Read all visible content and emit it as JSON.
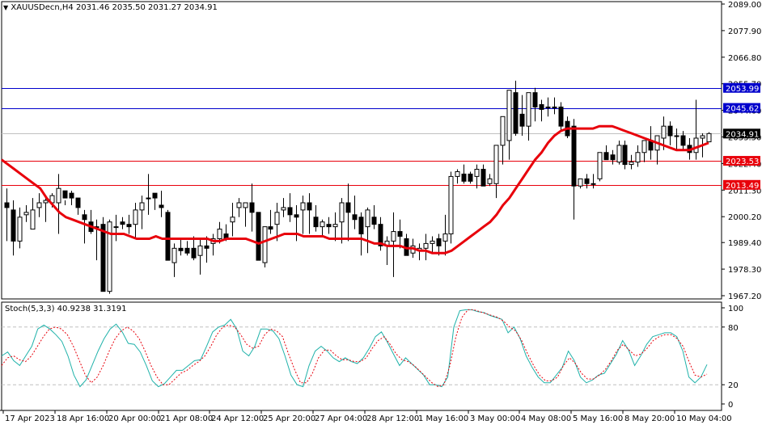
{
  "header": {
    "symbol_timeframe": "XAUUSDecn,H4",
    "ohlc": "2031.46 2035.50 2031.27 2034.91",
    "title": "XAUUSDecn,H4  2031.46 2035.50 2031.27 2034.91"
  },
  "stoch_panel": {
    "title": "Stoch(5,3,3) 40.9238 31.3191",
    "levels": [
      100,
      80,
      20,
      0
    ],
    "level_labels": [
      "100",
      "80",
      "20",
      "0"
    ]
  },
  "colors": {
    "background": "#ffffff",
    "candle_bull": "#ffffff",
    "candle_bear": "#000000",
    "ma_line": "#e8000b",
    "support_line": "#e8000b",
    "resistance_line": "#0000cc",
    "current_price_line": "#c0c0c0",
    "stoch_main": "#20b2aa",
    "stoch_signal": "#e8000b",
    "level_dash": "#c0c0c0"
  },
  "chart_data": [
    {
      "type": "candlestick",
      "title": "XAUUSDecn,H4",
      "ylim": [
        1967.2,
        2089.0
      ],
      "y_ticks": [
        "2089.00",
        "2077.90",
        "2066.80",
        "2055.70",
        "2044.60",
        "2033.50",
        "2022.40",
        "2011.30",
        "2000.20",
        "1989.40",
        "1978.30",
        "1967.20"
      ],
      "x_tick_labels": [
        "17 Apr 2023",
        "18 Apr 16:00",
        "20 Apr 00:00",
        "21 Apr 08:00",
        "24 Apr 12:00",
        "25 Apr 20:00",
        "27 Apr 04:00",
        "28 Apr 12:00",
        "1 May 16:00",
        "3 May 00:00",
        "4 May 08:00",
        "5 May 16:00",
        "8 May 20:00",
        "10 May 04:00"
      ],
      "horizontal_lines": [
        {
          "label": "2053.99",
          "value": 2053.99,
          "color": "#0000cc"
        },
        {
          "label": "2045.62",
          "value": 2045.62,
          "color": "#0000cc"
        },
        {
          "label": "2034.91",
          "value": 2034.91,
          "color": "#c0c0c0",
          "current_price": true
        },
        {
          "label": "2023.53",
          "value": 2023.53,
          "color": "#e8000b"
        },
        {
          "label": "2013.49",
          "value": 2013.49,
          "color": "#e8000b"
        }
      ],
      "current_price": 2034.91,
      "last_ohlc": {
        "open": 2031.46,
        "high": 2035.5,
        "low": 2031.27,
        "close": 2034.91
      },
      "candles": [
        [
          2006,
          2012,
          1990,
          2004
        ],
        [
          2003,
          2007,
          1984,
          1990
        ],
        [
          1990,
          2004,
          1987,
          2000
        ],
        [
          2001,
          2005,
          1998,
          2002
        ],
        [
          1995,
          2008,
          1995,
          2003
        ],
        [
          2004,
          2010,
          2000,
          2006
        ],
        [
          2006,
          2008,
          1998,
          2007
        ],
        [
          2006,
          2010,
          2004,
          2009
        ],
        [
          2006,
          2018,
          1993,
          2012
        ],
        [
          2011,
          2007,
          2005,
          2008
        ],
        [
          2010,
          2011,
          2005,
          2008
        ],
        [
          2008,
          2006,
          2001,
          2004
        ],
        [
          2001,
          2003,
          1989,
          1999
        ],
        [
          1998,
          2003,
          1993,
          1994
        ],
        [
          1996,
          1999,
          1982,
          1996
        ],
        [
          1997,
          2000,
          1973,
          1969
        ],
        [
          1969,
          1999,
          1968,
          1998
        ],
        [
          1996,
          2001,
          1990,
          1996
        ],
        [
          1998,
          2000,
          1995,
          1997
        ],
        [
          1997,
          2001,
          1993,
          1996
        ],
        [
          1997,
          2006,
          1991,
          2003
        ],
        [
          2003,
          2009,
          1995,
          2006
        ],
        [
          2008,
          2018,
          2001,
          2008
        ],
        [
          2010,
          2008,
          2003,
          2008
        ],
        [
          2005,
          2011,
          2000,
          2004
        ],
        [
          2002,
          2003,
          1987,
          1982
        ],
        [
          1981,
          1989,
          1975,
          1987
        ],
        [
          1987,
          1991,
          1984,
          1986
        ],
        [
          1987,
          1990,
          1984,
          1985
        ],
        [
          1987,
          1992,
          1982,
          1983
        ],
        [
          1984,
          1991,
          1976,
          1988
        ],
        [
          1988,
          1992,
          1981,
          1987
        ],
        [
          1989,
          1993,
          1984,
          1991
        ],
        [
          1991,
          1998,
          1989,
          1995
        ],
        [
          1993,
          1997,
          1990,
          1991
        ],
        [
          1998,
          2006,
          1992,
          2000
        ],
        [
          2004,
          2008,
          2000,
          2006
        ],
        [
          2004,
          2006,
          1996,
          2006
        ],
        [
          2006,
          2014,
          1994,
          2002
        ],
        [
          2002,
          1998,
          1989,
          1982
        ],
        [
          1981,
          1996,
          1979,
          1996
        ],
        [
          1996,
          2003,
          1993,
          1995
        ],
        [
          1997,
          2006,
          1990,
          2002
        ],
        [
          2003,
          2008,
          2000,
          2004
        ],
        [
          2004,
          2010,
          1998,
          2001
        ],
        [
          2001,
          2005,
          1990,
          2000
        ],
        [
          2003,
          2009,
          1993,
          2006
        ],
        [
          2006,
          2010,
          1993,
          2003
        ],
        [
          2000,
          2005,
          1994,
          1996
        ],
        [
          1996,
          1999,
          1992,
          1998
        ],
        [
          1997,
          2000,
          1993,
          1996
        ],
        [
          1996,
          2002,
          1990,
          1997
        ],
        [
          1998,
          2008,
          1989,
          2006
        ],
        [
          2006,
          2014,
          1990,
          2002
        ],
        [
          2001,
          2009,
          1995,
          1999
        ],
        [
          2000,
          2002,
          1984,
          1993
        ],
        [
          1996,
          2004,
          1985,
          2003
        ],
        [
          2000,
          2005,
          1995,
          1997
        ],
        [
          1997,
          2000,
          1986,
          1988
        ],
        [
          1988,
          1992,
          1980,
          1990
        ],
        [
          1990,
          2002,
          1975,
          1994
        ],
        [
          1994,
          1999,
          1987,
          1992
        ],
        [
          1991,
          1993,
          1984,
          1984
        ],
        [
          1985,
          1991,
          1983,
          1988
        ],
        [
          1986,
          1989,
          1982,
          1987
        ],
        [
          1987,
          1993,
          1982,
          1989
        ],
        [
          1989,
          1992,
          1985,
          1990
        ],
        [
          1991,
          1993,
          1984,
          1988
        ],
        [
          1990,
          2001,
          1984,
          1993
        ],
        [
          1993,
          2019,
          1989,
          2017
        ],
        [
          2017,
          2020,
          2014,
          2019
        ],
        [
          2018,
          2022,
          2014,
          2015
        ],
        [
          2018,
          2019,
          2014,
          2015
        ],
        [
          2017,
          2022,
          2012,
          2020
        ],
        [
          2020,
          2022,
          2013,
          2013
        ],
        [
          2014,
          2018,
          2013,
          2016
        ],
        [
          2014,
          2030,
          2008,
          2030
        ],
        [
          2030,
          2041,
          2022,
          2042
        ],
        [
          2032,
          2052,
          2024,
          2053
        ],
        [
          2052,
          2057,
          2034,
          2035
        ],
        [
          2043,
          2051,
          2034,
          2038
        ],
        [
          2038,
          2050,
          2032,
          2052
        ],
        [
          2052,
          2054,
          2040,
          2046
        ],
        [
          2047,
          2049,
          2040,
          2045
        ],
        [
          2046,
          2050,
          2042,
          2046
        ],
        [
          2046,
          2050,
          2043,
          2046
        ],
        [
          2046,
          2048,
          2036,
          2038
        ],
        [
          2040,
          2042,
          2033,
          2034
        ],
        [
          2038,
          2041,
          1999,
          2013
        ],
        [
          2013,
          2016,
          2012,
          2016
        ],
        [
          2016,
          2018,
          2012,
          2014
        ],
        [
          2014,
          2018,
          2012,
          2014
        ],
        [
          2016,
          2026,
          2015,
          2027
        ],
        [
          2027,
          2030,
          2024,
          2024
        ],
        [
          2026,
          2028,
          2022,
          2024
        ],
        [
          2023,
          2032,
          2022,
          2030
        ],
        [
          2030,
          2032,
          2020,
          2022
        ],
        [
          2022,
          2026,
          2020,
          2023
        ],
        [
          2023,
          2030,
          2021,
          2027
        ],
        [
          2027,
          2032,
          2023,
          2032
        ],
        [
          2032,
          2038,
          2024,
          2028
        ],
        [
          2028,
          2032,
          2022,
          2034
        ],
        [
          2033,
          2042,
          2028,
          2038
        ],
        [
          2038,
          2040,
          2030,
          2034
        ],
        [
          2034,
          2037,
          2028,
          2034
        ],
        [
          2034,
          2036,
          2028,
          2030
        ],
        [
          2030,
          2033,
          2024,
          2027
        ],
        [
          2027,
          2049,
          2024,
          2033
        ],
        [
          2033,
          2035,
          2025,
          2034
        ],
        [
          2031.46,
          2035.5,
          2031.27,
          2034.91
        ]
      ],
      "ma": {
        "color": "#e8000b",
        "values_approx": [
          2024,
          2022,
          2020,
          2018,
          2016,
          2014,
          2012,
          2008,
          2005,
          2002,
          2000,
          1999,
          1998,
          1997,
          1996,
          1995,
          1994,
          1993,
          1993,
          1993,
          1992,
          1991,
          1991,
          1991,
          1992,
          1991,
          1991,
          1991,
          1991,
          1991,
          1991,
          1991,
          1991,
          1990,
          1990,
          1991,
          1991,
          1991,
          1991,
          1990,
          1989,
          1990,
          1991,
          1992,
          1993,
          1993,
          1993,
          1992,
          1992,
          1992,
          1992,
          1991,
          1991,
          1991,
          1991,
          1991,
          1991,
          1990,
          1989,
          1989,
          1988,
          1988,
          1988,
          1987,
          1987,
          1986,
          1986,
          1985,
          1985,
          1985,
          1986,
          1988,
          1990,
          1992,
          1994,
          1996,
          1998,
          2001,
          2005,
          2008,
          2012,
          2016,
          2020,
          2024,
          2027,
          2031,
          2034,
          2036,
          2037,
          2037,
          2037,
          2037,
          2037,
          2038,
          2038,
          2038,
          2037,
          2036,
          2035,
          2034,
          2033,
          2032,
          2031,
          2030,
          2029,
          2028,
          2028,
          2028,
          2029,
          2030,
          2031
        ]
      }
    },
    {
      "type": "line",
      "title": "Stoch(5,3,3) 40.9238 31.3191",
      "ylim": [
        0,
        100
      ],
      "levels": [
        20,
        80
      ],
      "y_ticks": [
        "100",
        "80",
        "20",
        "0"
      ],
      "series": [
        {
          "name": "Main %K",
          "color": "#20b2aa",
          "last": 40.9238,
          "values": [
            50,
            54,
            45,
            40,
            50,
            60,
            78,
            82,
            78,
            72,
            65,
            50,
            30,
            18,
            25,
            40,
            55,
            68,
            78,
            83,
            75,
            63,
            62,
            54,
            40,
            24,
            18,
            21,
            28,
            35,
            35,
            40,
            45,
            46,
            60,
            75,
            80,
            82,
            88,
            78,
            55,
            50,
            60,
            78,
            78,
            76,
            68,
            50,
            30,
            20,
            18,
            40,
            55,
            60,
            55,
            48,
            44,
            48,
            44,
            42,
            48,
            58,
            70,
            75,
            64,
            52,
            40,
            48,
            42,
            36,
            30,
            20,
            20,
            18,
            28,
            80,
            97,
            98,
            98,
            96,
            95,
            92,
            90,
            88,
            74,
            80,
            68,
            50,
            38,
            28,
            22,
            22,
            30,
            38,
            55,
            45,
            28,
            22,
            25,
            30,
            32,
            42,
            52,
            66,
            56,
            40,
            50,
            62,
            70,
            72,
            74,
            74,
            70,
            55,
            28,
            22,
            28,
            41
          ]
        },
        {
          "name": "Signal %D",
          "color": "#e8000b",
          "last": 31.3191,
          "values": [
            40,
            48,
            50,
            46,
            44,
            50,
            60,
            70,
            78,
            80,
            78,
            72,
            60,
            45,
            30,
            22,
            28,
            40,
            55,
            68,
            76,
            80,
            76,
            68,
            55,
            40,
            28,
            20,
            20,
            26,
            32,
            35,
            40,
            44,
            50,
            60,
            72,
            80,
            82,
            80,
            72,
            62,
            58,
            60,
            72,
            78,
            76,
            70,
            52,
            36,
            22,
            22,
            32,
            48,
            56,
            56,
            50,
            46,
            46,
            44,
            44,
            48,
            58,
            66,
            70,
            62,
            52,
            46,
            44,
            40,
            34,
            28,
            22,
            18,
            20,
            40,
            70,
            90,
            98,
            98,
            96,
            94,
            92,
            90,
            86,
            80,
            76,
            66,
            52,
            40,
            30,
            24,
            24,
            28,
            40,
            48,
            42,
            32,
            26,
            26,
            30,
            36,
            45,
            56,
            62,
            56,
            50,
            52,
            58,
            66,
            70,
            72,
            72,
            68,
            60,
            44,
            30,
            28,
            31
          ]
        }
      ]
    }
  ]
}
